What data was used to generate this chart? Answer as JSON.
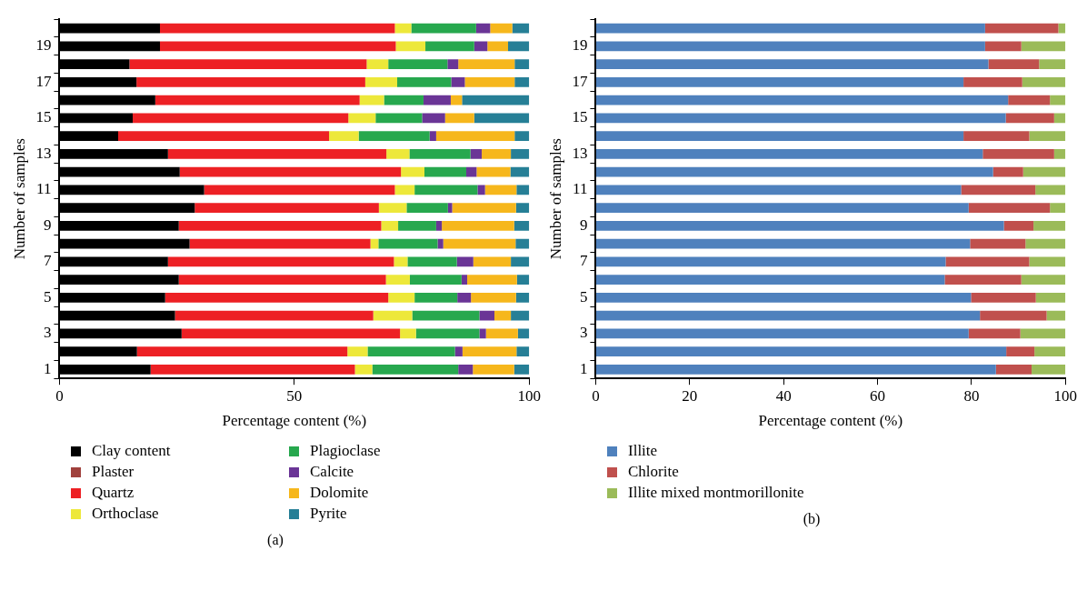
{
  "chart_data": [
    {
      "type": "bar",
      "orientation": "horizontal",
      "stacked": true,
      "xlabel": "Percentage content (%)",
      "ylabel": "Number of samples",
      "categories": [
        null,
        "19",
        null,
        "17",
        null,
        "15",
        null,
        "13",
        null,
        "11",
        null,
        "9",
        null,
        "7",
        null,
        "5",
        null,
        "3",
        null,
        "1"
      ],
      "series": [
        {
          "name": "Clay content",
          "color": "#000000",
          "values": [
            21.4,
            21.4,
            14.9,
            16.4,
            20.4,
            15.6,
            12.5,
            23.1,
            25.6,
            30.8,
            28.8,
            25.4,
            27.7,
            23.1,
            25.4,
            22.5,
            24.6,
            26.0,
            16.5,
            19.4
          ]
        },
        {
          "name": "Plaster",
          "color": "#a0413c",
          "values": [
            0,
            0,
            0,
            0,
            0,
            0,
            0,
            0,
            0,
            0,
            0,
            0,
            0,
            0,
            0,
            0,
            0,
            0,
            0,
            0
          ]
        },
        {
          "name": "Quartz",
          "color": "#ed2024",
          "values": [
            50.0,
            50.2,
            50.5,
            48.7,
            43.5,
            45.9,
            44.9,
            46.5,
            47.1,
            40.6,
            39.2,
            43.1,
            38.5,
            48.1,
            44.1,
            47.5,
            42.2,
            46.5,
            44.8,
            43.5
          ]
        },
        {
          "name": "Orthoclase",
          "color": "#ede83a",
          "values": [
            3.5,
            6.3,
            4.6,
            6.8,
            5.2,
            5.8,
            6.3,
            4.9,
            5.0,
            4.2,
            5.9,
            3.6,
            1.7,
            2.9,
            5.1,
            5.6,
            8.3,
            3.4,
            4.3,
            3.7
          ]
        },
        {
          "name": "Plagioclase",
          "color": "#27a84e",
          "values": [
            13.8,
            10.4,
            12.6,
            11.5,
            8.4,
            9.9,
            15.1,
            13.0,
            8.9,
            13.4,
            8.8,
            8.1,
            12.6,
            10.5,
            11.0,
            9.1,
            14.3,
            13.5,
            18.6,
            18.3
          ]
        },
        {
          "name": "Calcite",
          "color": "#6a3596",
          "values": [
            3.0,
            2.8,
            2.3,
            2.9,
            5.8,
            4.9,
            1.4,
            2.4,
            2.2,
            1.6,
            0.9,
            1.2,
            1.2,
            3.5,
            1.2,
            2.9,
            3.2,
            1.4,
            1.6,
            3.1
          ]
        },
        {
          "name": "Dolomite",
          "color": "#f6b71c",
          "values": [
            4.7,
            4.4,
            12.0,
            10.6,
            2.4,
            6.2,
            16.7,
            6.2,
            7.2,
            6.7,
            13.6,
            15.4,
            15.4,
            8.0,
            10.6,
            9.6,
            3.5,
            6.8,
            11.5,
            8.8
          ]
        },
        {
          "name": "Pyrite",
          "color": "#267f96",
          "values": [
            3.6,
            4.5,
            3.1,
            3.1,
            14.3,
            11.7,
            3.1,
            3.9,
            4.0,
            2.7,
            2.8,
            3.2,
            2.9,
            3.9,
            2.6,
            2.8,
            3.9,
            2.4,
            2.7,
            3.2
          ]
        }
      ],
      "xlim": [
        0,
        100
      ],
      "xticks": [
        0,
        50,
        100
      ],
      "legend": "bottom",
      "annotations": [
        "(a)"
      ]
    },
    {
      "type": "bar",
      "orientation": "horizontal",
      "stacked": true,
      "xlabel": "Percentage content (%)",
      "ylabel": "Number of samples",
      "categories": [
        null,
        "19",
        null,
        "17",
        null,
        "15",
        null,
        "13",
        null,
        "11",
        null,
        "9",
        null,
        "7",
        null,
        "5",
        null,
        "3",
        null,
        "1"
      ],
      "series": [
        {
          "name": "Illite",
          "color": "#4f81bd",
          "values": [
            82.9,
            82.9,
            83.6,
            78.3,
            87.8,
            87.3,
            78.3,
            82.4,
            84.6,
            77.8,
            79.4,
            86.9,
            79.7,
            74.5,
            74.3,
            79.9,
            81.8,
            79.4,
            87.4,
            85.2
          ]
        },
        {
          "name": "Chlorite",
          "color": "#c0504d",
          "values": [
            15.6,
            7.7,
            10.8,
            12.5,
            8.9,
            10.3,
            14.0,
            15.2,
            6.4,
            15.8,
            17.3,
            6.3,
            11.8,
            17.8,
            16.3,
            13.8,
            14.2,
            11.0,
            6.0,
            7.6
          ]
        },
        {
          "name": "Illite mixed montmorillonite",
          "color": "#9bbb59",
          "values": [
            1.5,
            9.4,
            5.6,
            9.2,
            3.3,
            2.4,
            7.7,
            2.4,
            9.0,
            6.4,
            3.3,
            6.8,
            8.5,
            7.7,
            9.4,
            6.3,
            4.0,
            9.6,
            6.6,
            7.2
          ]
        }
      ],
      "xlim": [
        0,
        100
      ],
      "xticks": [
        0,
        20,
        40,
        60,
        80,
        100
      ],
      "legend": "bottom",
      "annotations": [
        "(b)"
      ]
    }
  ]
}
